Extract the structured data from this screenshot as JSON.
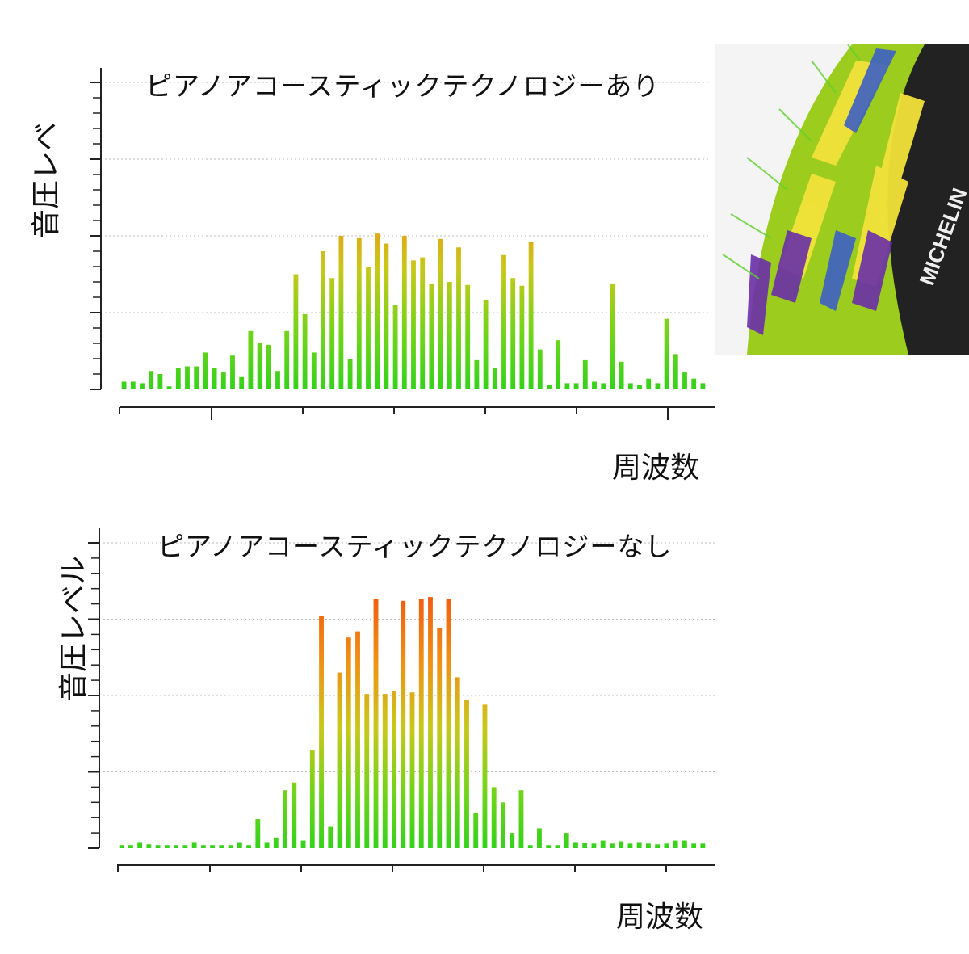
{
  "chart_data": [
    {
      "type": "bar",
      "title": "ピアノアコースティックテクノロジーあり",
      "xlabel": "周波数",
      "ylabel": "音圧レベ",
      "ylim": [
        0,
        4
      ],
      "grid": true,
      "values": [
        0.1,
        0.1,
        0.08,
        0.24,
        0.2,
        0.04,
        0.28,
        0.3,
        0.3,
        0.48,
        0.28,
        0.22,
        0.44,
        0.16,
        0.76,
        0.6,
        0.58,
        0.24,
        0.76,
        1.5,
        0.98,
        0.48,
        1.8,
        1.45,
        2.0,
        0.4,
        1.97,
        1.6,
        2.03,
        1.9,
        1.1,
        2.0,
        1.68,
        1.72,
        1.38,
        1.96,
        1.4,
        1.85,
        1.36,
        0.38,
        1.16,
        0.28,
        1.75,
        1.45,
        1.35,
        1.92,
        0.52,
        0.06,
        0.64,
        0.08,
        0.08,
        0.38,
        0.1,
        0.08,
        1.38,
        0.36,
        0.08,
        0.06,
        0.14,
        0.08,
        0.92,
        0.46,
        0.22,
        0.14,
        0.08
      ]
    },
    {
      "type": "bar",
      "title": "ピアノアコースティックテクノロジーなし",
      "xlabel": "周波数",
      "ylabel": "音圧レベル",
      "ylim": [
        0,
        4
      ],
      "grid": true,
      "values": [
        0.04,
        0.04,
        0.08,
        0.05,
        0.04,
        0.04,
        0.04,
        0.04,
        0.08,
        0.04,
        0.04,
        0.04,
        0.04,
        0.08,
        0.04,
        0.38,
        0.08,
        0.14,
        0.76,
        0.86,
        0.1,
        1.28,
        3.04,
        0.28,
        2.3,
        2.76,
        2.84,
        2.02,
        3.27,
        2.02,
        2.06,
        3.24,
        2.04,
        3.26,
        3.29,
        2.88,
        3.27,
        2.24,
        1.94,
        0.46,
        1.88,
        0.8,
        0.6,
        0.2,
        0.76,
        0.04,
        0.26,
        0.04,
        0.04,
        0.2,
        0.08,
        0.07,
        0.06,
        0.1,
        0.06,
        0.09,
        0.06,
        0.08,
        0.06,
        0.05,
        0.06,
        0.1,
        0.1,
        0.06,
        0.06
      ]
    }
  ],
  "photo": {
    "brand": "MICHELIN",
    "colors": [
      "#9ccc1e",
      "#f2e23a",
      "#3d5fc4",
      "#6a2fa8",
      "#5fd12a"
    ]
  },
  "colors": {
    "low": "#3ad01a",
    "mid": "#f0a01a",
    "high": "#f05010",
    "grid": "#bbbbbb",
    "axis": "#222222"
  }
}
